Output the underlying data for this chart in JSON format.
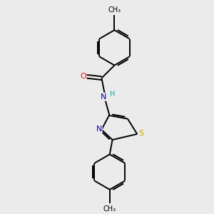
{
  "background_color": "#ebebeb",
  "atom_colors": {
    "C": "#000000",
    "N": "#0000cc",
    "O": "#ff0000",
    "S": "#ccaa00",
    "H": "#00aaaa"
  },
  "figsize": [
    3.0,
    3.0
  ],
  "dpi": 100,
  "line_width": 1.4,
  "font_size": 8
}
